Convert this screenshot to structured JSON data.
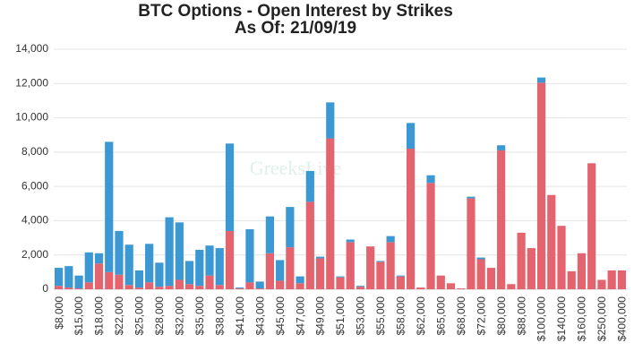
{
  "chart_data": {
    "type": "stacked_bar",
    "title": "BTC Options - Open Interest by Strikes",
    "subtitle": "As Of: 21/09/19",
    "watermark": "GreeksLive",
    "categories": [
      "$8,000",
      null,
      "$15,000",
      null,
      "$18,000",
      null,
      "$22,000",
      null,
      "$25,000",
      null,
      "$28,000",
      null,
      "$32,000",
      null,
      "$35,000",
      null,
      "$38,000",
      null,
      "$41,000",
      null,
      "$43,000",
      null,
      "$45,000",
      null,
      "$47,000",
      null,
      "$49,000",
      null,
      "$51,000",
      null,
      "$53,000",
      null,
      "$55,000",
      null,
      "$58,000",
      null,
      "$62,000",
      null,
      "$65,000",
      null,
      "$68,000",
      null,
      "$72,000",
      null,
      "$80,000",
      null,
      "$88,000",
      null,
      "$100,000",
      null,
      "$140,000",
      null,
      "$160,000",
      null,
      "$250,000",
      null,
      "$400,000"
    ],
    "series": [
      {
        "color": "#e3646e",
        "values": [
          200,
          100,
          50,
          400,
          1500,
          1000,
          850,
          250,
          100,
          400,
          150,
          200,
          550,
          300,
          200,
          800,
          250,
          3400,
          50,
          400,
          50,
          2100,
          500,
          2450,
          350,
          5100,
          1800,
          8800,
          700,
          2750,
          150,
          2500,
          1600,
          2750,
          750,
          8200,
          100,
          6200,
          800,
          350,
          50,
          5300,
          1750,
          1250,
          8100,
          300,
          3300,
          2400,
          12050,
          5500,
          3700,
          1050,
          2100,
          7350,
          550,
          1100,
          1100
        ]
      },
      {
        "color": "#3b98d3",
        "values": [
          1050,
          1250,
          750,
          1750,
          600,
          7600,
          2550,
          2350,
          1000,
          2250,
          1400,
          4000,
          3350,
          1350,
          2100,
          1750,
          2150,
          5100,
          50,
          3100,
          400,
          2150,
          1200,
          2350,
          400,
          1800,
          100,
          2100,
          50,
          150,
          50,
          0,
          50,
          350,
          50,
          1500,
          0,
          450,
          0,
          0,
          0,
          100,
          100,
          0,
          300,
          0,
          0,
          0,
          300,
          0,
          0,
          0,
          0,
          0,
          0,
          0,
          0
        ]
      }
    ],
    "ylim": [
      0,
      14000
    ],
    "yticks": [
      0,
      {
        "value": 2000,
        "label": "2,000"
      },
      {
        "value": 4000,
        "label": "4,000"
      },
      {
        "value": 6000,
        "label": "6,000"
      },
      {
        "value": 8000,
        "label": "8,000"
      },
      {
        "value": 10000,
        "label": "10,000"
      },
      {
        "value": 12000,
        "label": "12,000"
      },
      {
        "value": 14000,
        "label": "14,000"
      }
    ],
    "grid": true
  }
}
